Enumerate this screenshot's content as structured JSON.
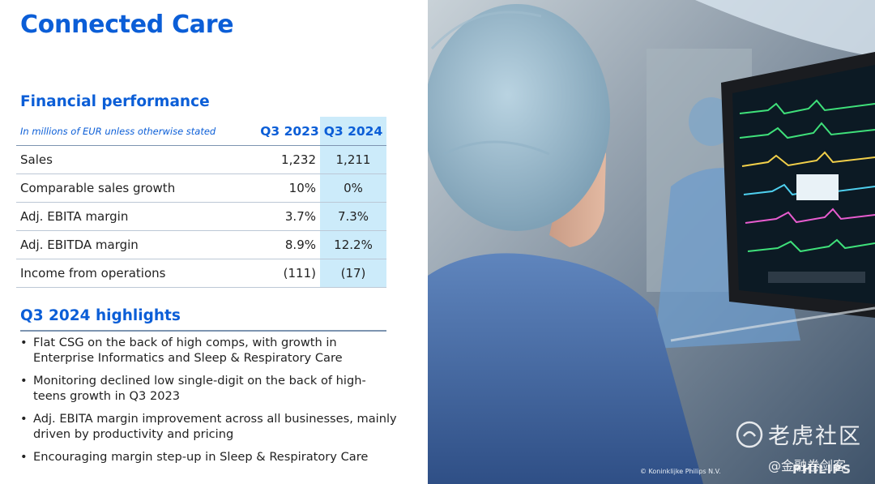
{
  "page": {
    "title": "Connected Care"
  },
  "financial": {
    "title": "Financial performance",
    "note": "In millions of EUR unless otherwise stated",
    "columns": [
      "Q3 2023",
      "Q3 2024"
    ],
    "rows": [
      {
        "label": "Sales",
        "values": [
          "1,232",
          "1,211"
        ]
      },
      {
        "label": "Comparable sales growth",
        "values": [
          "10%",
          "0%"
        ]
      },
      {
        "label": "Adj. EBITA margin",
        "values": [
          "3.7%",
          "7.3%"
        ]
      },
      {
        "label": "Adj. EBITDA margin",
        "values": [
          "8.9%",
          "12.2%"
        ]
      },
      {
        "label": "Income from operations",
        "values": [
          "(111)",
          "(17)"
        ]
      }
    ]
  },
  "highlights": {
    "title": "Q3 2024 highlights",
    "bullet": "•",
    "items": [
      "Flat CSG on the back of high comps, with growth in Enterprise Informatics and Sleep & Respiratory Care",
      "Monitoring declined low single-digit on the back of high-teens growth in Q3 2023",
      "Adj. EBITA margin improvement across all businesses, mainly driven by productivity and pricing",
      "Encouraging margin step-up in Sleep & Respiratory Care"
    ]
  },
  "photo": {
    "description_icon": "clinician-monitor-photo",
    "copyright": "© Koninklijke Philips N.V.",
    "brand": "PHILIPS"
  },
  "watermark": {
    "main": "老虎社区",
    "sub": "@金融卷剑客"
  },
  "colors": {
    "brand_blue": "#0b5ed7",
    "highlight_column": "#ccebfa",
    "rule": "#7d94b0"
  }
}
